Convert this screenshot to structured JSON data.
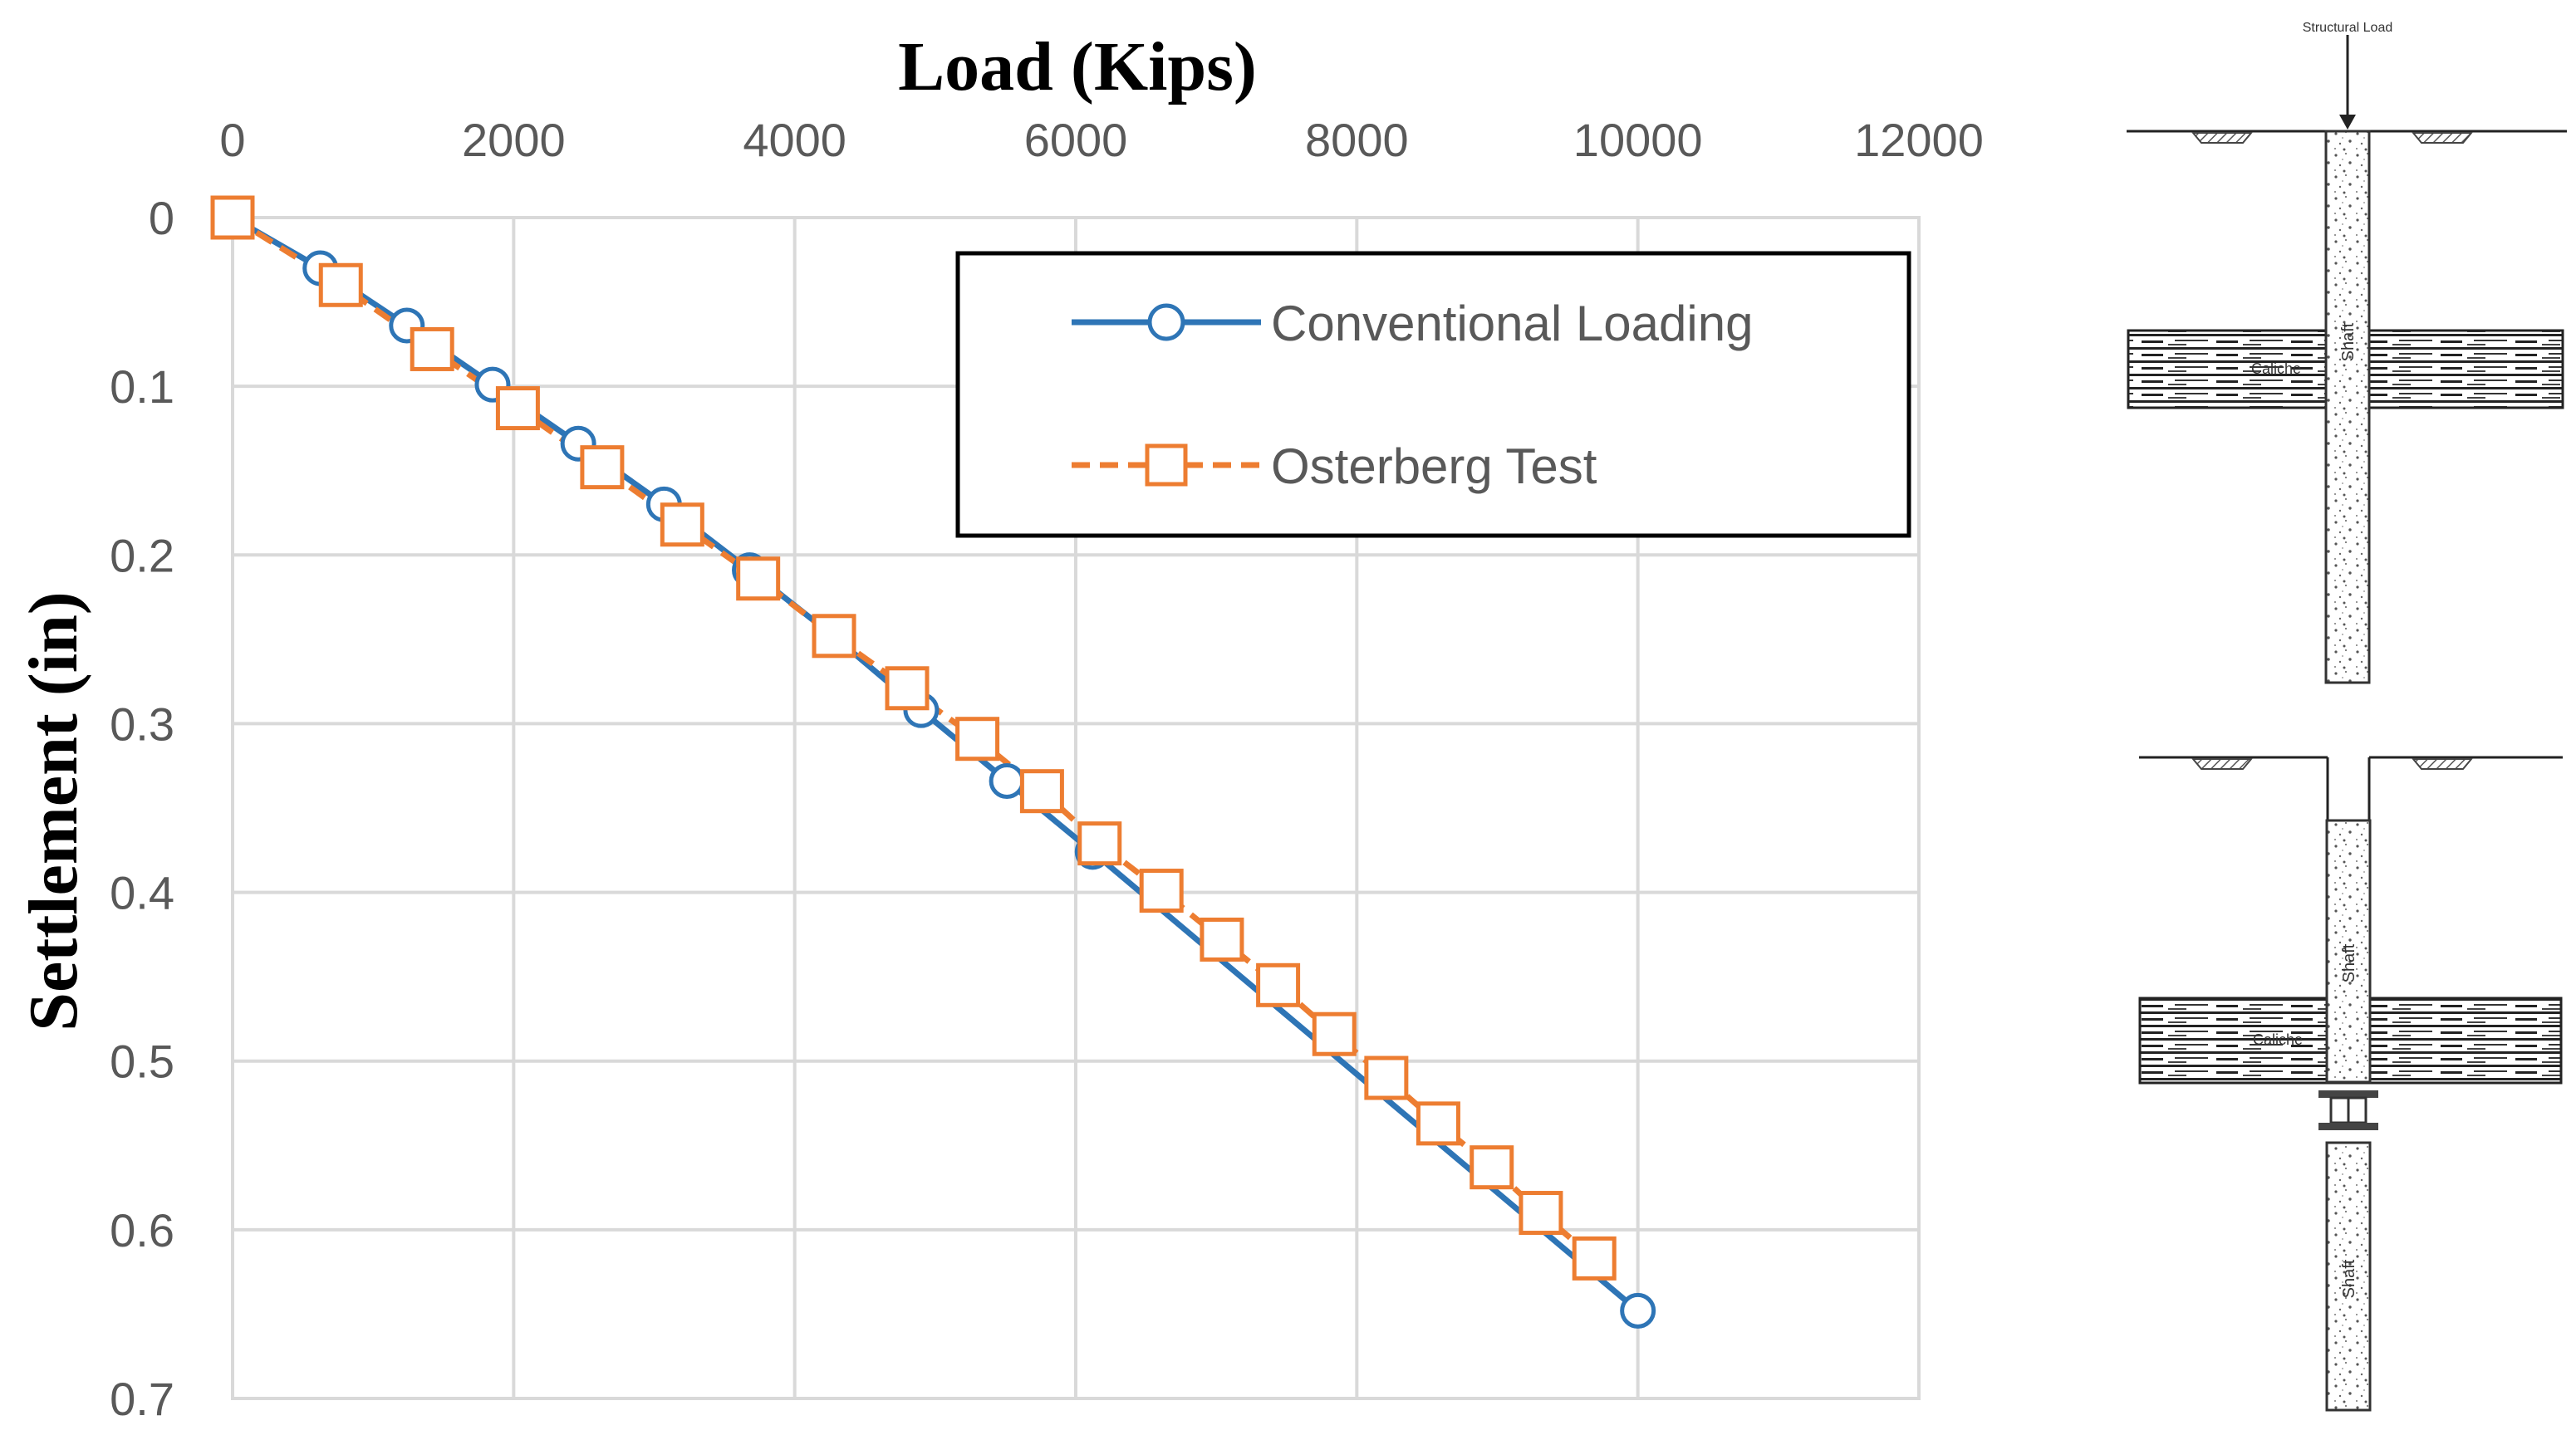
{
  "chart_data": {
    "type": "line",
    "title": "",
    "xlabel": "Load (Kips)",
    "ylabel": "Settlement (in)",
    "x_axis_position": "top",
    "y_axis_inverted": true,
    "xlim": [
      0,
      12000
    ],
    "ylim": [
      0,
      0.7
    ],
    "x_ticks": [
      0,
      2000,
      4000,
      6000,
      8000,
      10000,
      12000
    ],
    "y_ticks": [
      0,
      0.1,
      0.2,
      0.3,
      0.4,
      0.5,
      0.6,
      0.7
    ],
    "x_tick_labels": [
      "0",
      "2000",
      "4000",
      "6000",
      "8000",
      "10000",
      "12000"
    ],
    "y_tick_labels": [
      "0",
      "0.1",
      "0.2",
      "0.3",
      "0.4",
      "0.5",
      "0.6",
      "0.7"
    ],
    "grid": true,
    "legend_position": "top-right",
    "series": [
      {
        "name": "Conventional Loading",
        "color": "#2E75B6",
        "line_style": "solid",
        "marker": "circle",
        "x": [
          0,
          625,
          1240,
          1850,
          2460,
          3070,
          3680,
          4290,
          4900,
          5510,
          6120,
          10000
        ],
        "y": [
          0,
          0.03,
          0.064,
          0.099,
          0.134,
          0.17,
          0.209,
          0.249,
          0.292,
          0.334,
          0.376,
          0.648
        ]
      },
      {
        "name": "Osterberg Test",
        "color": "#ED7D31",
        "line_style": "dashed",
        "marker": "square",
        "x": [
          0,
          770,
          1420,
          2030,
          2630,
          3200,
          3740,
          4280,
          4800,
          5300,
          5760,
          6170,
          6610,
          7040,
          7440,
          7840,
          8210,
          8580,
          8960,
          9310,
          9690
        ],
        "y": [
          0,
          0.04,
          0.078,
          0.113,
          0.148,
          0.182,
          0.214,
          0.248,
          0.279,
          0.309,
          0.34,
          0.371,
          0.399,
          0.428,
          0.455,
          0.484,
          0.51,
          0.537,
          0.563,
          0.59,
          0.617
        ]
      }
    ]
  },
  "diagram": {
    "top": {
      "load_label": "Structural Load",
      "shaft_label": "Shaft",
      "layer_label": "Caliche"
    },
    "bottom": {
      "shaft_label_upper": "Shaft",
      "shaft_label_lower": "Shaft",
      "layer_label": "Caliche"
    }
  }
}
